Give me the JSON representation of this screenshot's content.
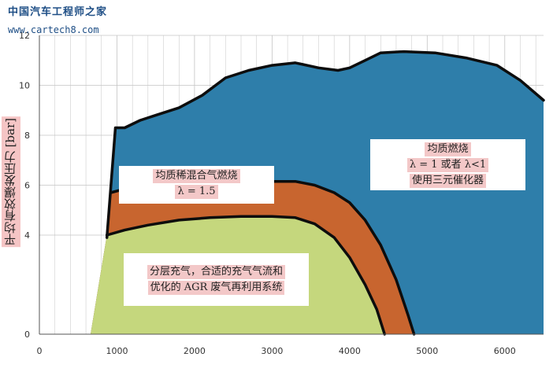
{
  "watermark": {
    "line1": "中国汽车工程师之家",
    "line2": "www.cartech8.com"
  },
  "chart_data": {
    "type": "area",
    "title": "",
    "xlabel": "",
    "ylabel": "平均有效爆发压力 [bar]",
    "xlim": [
      0,
      6500
    ],
    "ylim": [
      0,
      12
    ],
    "x_ticks": [
      "0",
      "1000",
      "2000",
      "3000",
      "4000",
      "5000",
      "6000"
    ],
    "y_ticks": [
      "0",
      "4",
      "6",
      "8",
      "10",
      "12"
    ],
    "grid": true,
    "colors": {
      "homogeneous": "#2e7eaa",
      "homogeneous_lean": "#c8652f",
      "stratified": "#c5d77d",
      "boundary": "#0d0d0d",
      "grid": "#c4c4c4"
    },
    "series": [
      {
        "region": "均质燃烧",
        "upper_boundary": [
          [
            870,
            3.9
          ],
          [
            980,
            8.3
          ],
          [
            1100,
            8.3
          ],
          [
            1300,
            8.6
          ],
          [
            1500,
            8.8
          ],
          [
            1800,
            9.1
          ],
          [
            2100,
            9.6
          ],
          [
            2400,
            10.3
          ],
          [
            2700,
            10.6
          ],
          [
            3000,
            10.8
          ],
          [
            3300,
            10.9
          ],
          [
            3600,
            10.7
          ],
          [
            3850,
            10.6
          ],
          [
            4000,
            10.7
          ],
          [
            4200,
            11.0
          ],
          [
            4400,
            11.3
          ],
          [
            4700,
            11.35
          ],
          [
            5100,
            11.3
          ],
          [
            5500,
            11.1
          ],
          [
            5900,
            10.8
          ],
          [
            6200,
            10.2
          ],
          [
            6500,
            9.4
          ]
        ]
      },
      {
        "region": "均质稀混合气燃烧",
        "upper_boundary": [
          [
            920,
            5.7
          ],
          [
            1100,
            5.85
          ],
          [
            1400,
            5.9
          ],
          [
            1800,
            6.0
          ],
          [
            2200,
            6.1
          ],
          [
            2600,
            6.15
          ],
          [
            3000,
            6.15
          ],
          [
            3300,
            6.15
          ],
          [
            3550,
            6.0
          ],
          [
            3800,
            5.7
          ],
          [
            4000,
            5.3
          ],
          [
            4200,
            4.6
          ],
          [
            4400,
            3.6
          ],
          [
            4600,
            2.2
          ],
          [
            4750,
            0.8
          ],
          [
            4830,
            0.0
          ]
        ]
      },
      {
        "region": "分层充气",
        "upper_boundary": [
          [
            870,
            4.0
          ],
          [
            1100,
            4.2
          ],
          [
            1400,
            4.4
          ],
          [
            1800,
            4.6
          ],
          [
            2200,
            4.7
          ],
          [
            2600,
            4.75
          ],
          [
            3000,
            4.75
          ],
          [
            3300,
            4.7
          ],
          [
            3550,
            4.45
          ],
          [
            3800,
            3.9
          ],
          [
            4000,
            3.1
          ],
          [
            4200,
            2.0
          ],
          [
            4350,
            1.0
          ],
          [
            4450,
            0.0
          ]
        ],
        "left_boundary": [
          [
            660,
            0.0
          ],
          [
            870,
            4.0
          ]
        ]
      }
    ],
    "annotations": [
      {
        "key": "homogeneous",
        "lines": [
          "均质燃烧",
          "λ = 1 或者 λ<1",
          "使用三元催化器"
        ]
      },
      {
        "key": "homogeneous_lean",
        "lines": [
          "均质稀混合气燃烧",
          "λ = 1.5"
        ]
      },
      {
        "key": "stratified",
        "lines": [
          "分层充气，合适的充气气流和",
          "优化的 AGR 废气再利用系统"
        ]
      }
    ]
  }
}
